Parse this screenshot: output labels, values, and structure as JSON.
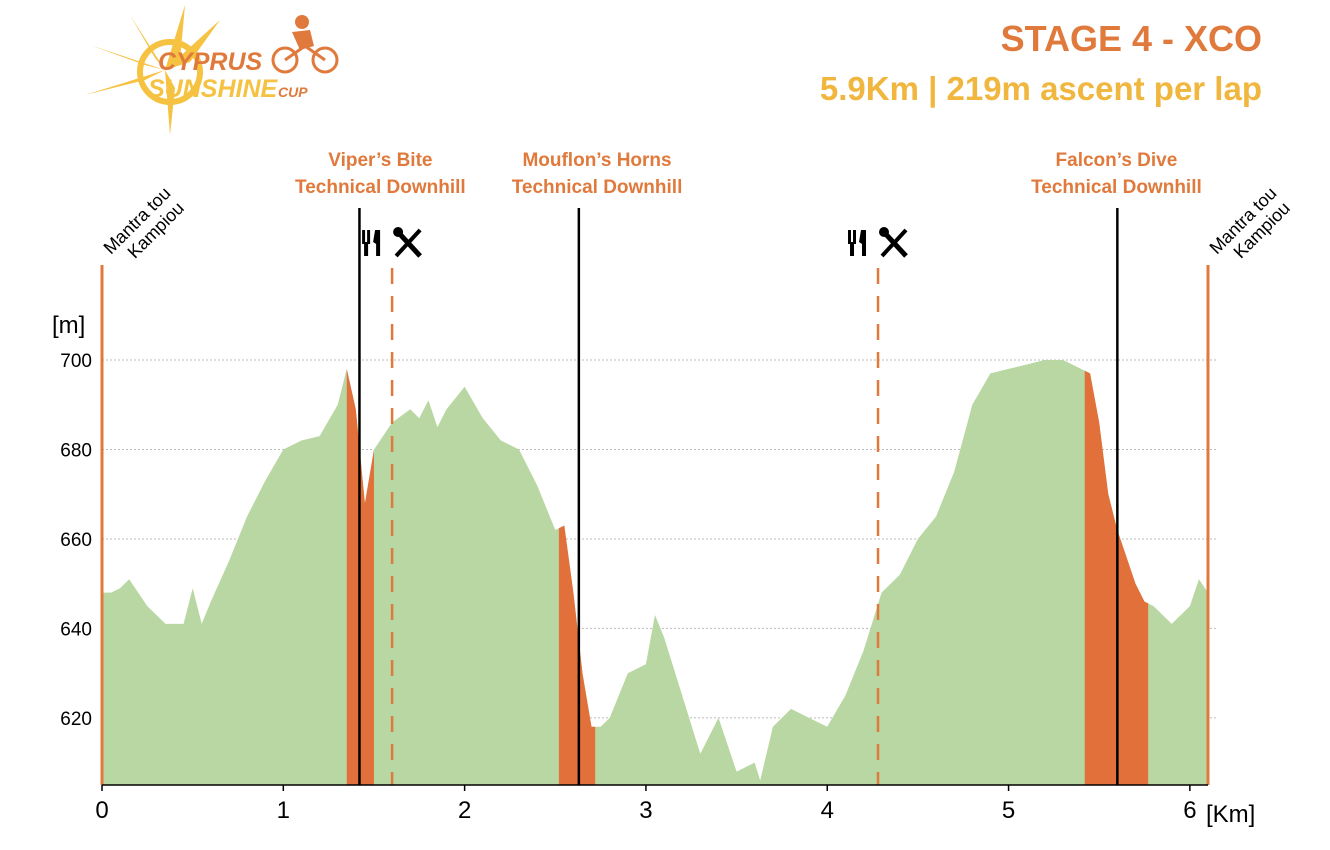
{
  "header": {
    "title": "STAGE 4 - XCO",
    "subtitle": "5.9Km | 219m ascent per lap",
    "logo": {
      "line1": "CYPRUS",
      "line2": "SUNSHINE",
      "line3": "CUP"
    }
  },
  "colors": {
    "profile_fill": "#b9d7a2",
    "downhill_fill": "#e2703a",
    "accent_orange": "#e07a3c",
    "accent_yellow": "#f0b63e",
    "marker_line": "#000000",
    "grid": "#bbbbbb"
  },
  "chart_data": {
    "type": "area",
    "title": "STAGE 4 - XCO",
    "xlabel": "[Km]",
    "ylabel": "[m]",
    "xlim": [
      0,
      6.1
    ],
    "ylim": [
      605,
      700
    ],
    "xticks": [
      0,
      1,
      2,
      3,
      4,
      5,
      6
    ],
    "yticks": [
      620,
      640,
      660,
      680,
      700
    ],
    "grid": true,
    "series": [
      {
        "x": [
          0,
          0.05,
          0.1,
          0.15,
          0.25,
          0.35,
          0.45,
          0.5,
          0.55,
          0.6,
          0.7,
          0.8,
          0.9,
          1.0,
          1.1,
          1.2,
          1.3,
          1.35,
          1.4,
          1.45,
          1.5,
          1.55,
          1.6,
          1.7,
          1.75,
          1.8,
          1.85,
          1.9,
          2.0,
          2.1,
          2.2,
          2.3,
          2.4,
          2.5,
          2.55,
          2.6,
          2.65,
          2.7,
          2.75,
          2.8,
          2.9,
          3.0,
          3.05,
          3.1,
          3.2,
          3.3,
          3.4,
          3.5,
          3.6,
          3.63,
          3.7,
          3.8,
          3.9,
          4.0,
          4.1,
          4.2,
          4.3,
          4.4,
          4.5,
          4.6,
          4.7,
          4.8,
          4.9,
          5.0,
          5.1,
          5.2,
          5.3,
          5.4,
          5.45,
          5.5,
          5.55,
          5.6,
          5.65,
          5.7,
          5.75,
          5.8,
          5.9,
          6.0,
          6.05,
          6.1
        ],
        "y": [
          648,
          648,
          649,
          651,
          645,
          641,
          641,
          649,
          641,
          646,
          655,
          665,
          673,
          680,
          682,
          683,
          690,
          698,
          689,
          668,
          680,
          683,
          686,
          689,
          687,
          691,
          685,
          689,
          694,
          687,
          682,
          680,
          672,
          662,
          663,
          648,
          630,
          618,
          618,
          620,
          630,
          632,
          643,
          638,
          625,
          612,
          620,
          608,
          610,
          606,
          618,
          622,
          620,
          618,
          625,
          635,
          648,
          652,
          660,
          665,
          675,
          690,
          697,
          698,
          699,
          700,
          700,
          698,
          697,
          686,
          670,
          662,
          656,
          650,
          646,
          645,
          641,
          645,
          651,
          648
        ]
      }
    ],
    "downhills": [
      {
        "name": "Viper’s Bite",
        "label": "Technical Downhill",
        "x_start": 1.35,
        "x_end": 1.5
      },
      {
        "name": "Mouflon’s Horns",
        "label": "Technical Downhill",
        "x_start": 2.52,
        "x_end": 2.72
      },
      {
        "name": "Falcon’s Dive",
        "label": "Technical Downhill",
        "x_start": 5.42,
        "x_end": 5.77
      }
    ],
    "markers": [
      {
        "x": 1.42,
        "style": "solid"
      },
      {
        "x": 1.6,
        "style": "dashed-orange"
      },
      {
        "x": 2.63,
        "style": "solid"
      },
      {
        "x": 4.28,
        "style": "dashed-orange"
      },
      {
        "x": 5.6,
        "style": "solid"
      }
    ],
    "start_finish": [
      {
        "x": 0,
        "label": "Mantra tou\nKampiou"
      },
      {
        "x": 6.1,
        "label": "Mantra tou\nKampiou"
      }
    ],
    "feed_tech_zones": [
      {
        "x": 1.6,
        "icons": [
          "fork-knife-icon",
          "wrench-screwdriver-icon"
        ]
      },
      {
        "x": 4.28,
        "icons": [
          "fork-knife-icon",
          "wrench-screwdriver-icon"
        ]
      }
    ]
  }
}
